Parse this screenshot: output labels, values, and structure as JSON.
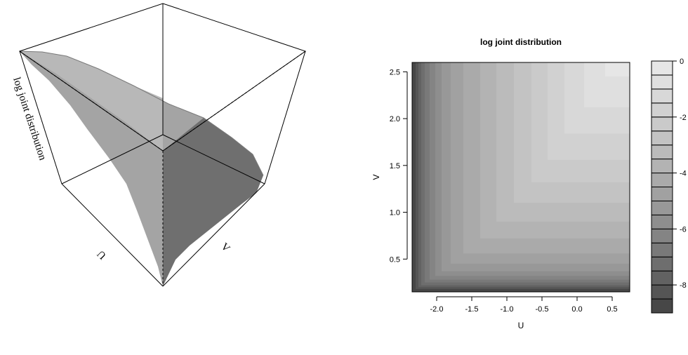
{
  "chart_data": [
    {
      "type": "surface",
      "xlabel": "U",
      "ylabel": "V",
      "zlabel": "log joint distribution",
      "colormap": "grayscale (dark = low, light = high)"
    },
    {
      "type": "filled-contour",
      "title": "log joint distribution",
      "xlabel": "U",
      "ylabel": "V",
      "xlim": [
        -2.35,
        0.75
      ],
      "ylim": [
        0.15,
        2.6
      ],
      "xticks": [
        "-2.0",
        "-1.5",
        "-1.0",
        "-0.5",
        "0.0",
        "0.5"
      ],
      "yticks": [
        "0.5",
        "1.0",
        "1.5",
        "2.0",
        "2.5"
      ],
      "colorbar": {
        "ticks": [
          "0",
          "-2",
          "-4",
          "-6",
          "-8"
        ],
        "range": [
          -9,
          0
        ],
        "levels": [
          {
            "from": -9.0,
            "to": -8.5,
            "color": "#474747"
          },
          {
            "from": -8.5,
            "to": -8.0,
            "color": "#555555"
          },
          {
            "from": -8.0,
            "to": -7.5,
            "color": "#626262"
          },
          {
            "from": -7.5,
            "to": -7.0,
            "color": "#6e6e6e"
          },
          {
            "from": -7.0,
            "to": -6.5,
            "color": "#797979"
          },
          {
            "from": -6.5,
            "to": -6.0,
            "color": "#848484"
          },
          {
            "from": -6.0,
            "to": -5.5,
            "color": "#8e8e8e"
          },
          {
            "from": -5.5,
            "to": -5.0,
            "color": "#989898"
          },
          {
            "from": -5.0,
            "to": -4.5,
            "color": "#a1a1a1"
          },
          {
            "from": -4.5,
            "to": -4.0,
            "color": "#aaaaaa"
          },
          {
            "from": -4.0,
            "to": -3.5,
            "color": "#b3b3b3"
          },
          {
            "from": -3.5,
            "to": -3.0,
            "color": "#bbbbbb"
          },
          {
            "from": -3.0,
            "to": -2.5,
            "color": "#c3c3c3"
          },
          {
            "from": -2.5,
            "to": -2.0,
            "color": "#cacaca"
          },
          {
            "from": -2.0,
            "to": -1.5,
            "color": "#d1d1d1"
          },
          {
            "from": -1.5,
            "to": -1.0,
            "color": "#d8d8d8"
          },
          {
            "from": -1.0,
            "to": -0.5,
            "color": "#dfdfdf"
          },
          {
            "from": -0.5,
            "to": 0.0,
            "color": "#e6e6e6"
          }
        ]
      },
      "bands": [
        {
          "level": -9.0,
          "color": "#474747",
          "u": -2.35,
          "v": 0.15
        },
        {
          "level": -8.5,
          "color": "#555555",
          "u": -2.3,
          "v": 0.18
        },
        {
          "level": -8.0,
          "color": "#626262",
          "u": -2.26,
          "v": 0.2
        },
        {
          "level": -7.5,
          "color": "#6e6e6e",
          "u": -2.22,
          "v": 0.22
        },
        {
          "level": -7.0,
          "color": "#797979",
          "u": -2.17,
          "v": 0.25
        },
        {
          "level": -6.5,
          "color": "#848484",
          "u": -2.1,
          "v": 0.28
        },
        {
          "level": -6.0,
          "color": "#8e8e8e",
          "u": -2.02,
          "v": 0.32
        },
        {
          "level": -5.5,
          "color": "#989898",
          "u": -1.93,
          "v": 0.37
        },
        {
          "level": -5.0,
          "color": "#a1a1a1",
          "u": -1.8,
          "v": 0.45
        },
        {
          "level": -4.5,
          "color": "#aaaaaa",
          "u": -1.62,
          "v": 0.56
        },
        {
          "level": -4.0,
          "color": "#b3b3b3",
          "u": -1.38,
          "v": 0.72
        },
        {
          "level": -3.5,
          "color": "#bbbbbb",
          "u": -1.15,
          "v": 0.9
        },
        {
          "level": -3.0,
          "color": "#c3c3c3",
          "u": -0.9,
          "v": 1.1
        },
        {
          "level": -2.5,
          "color": "#cacaca",
          "u": -0.65,
          "v": 1.32
        },
        {
          "level": -2.0,
          "color": "#d1d1d1",
          "u": -0.42,
          "v": 1.56
        },
        {
          "level": -1.5,
          "color": "#d8d8d8",
          "u": -0.18,
          "v": 1.84
        },
        {
          "level": -1.0,
          "color": "#dfdfdf",
          "u": 0.1,
          "v": 2.12
        },
        {
          "level": -0.5,
          "color": "#e6e6e6",
          "u": 0.4,
          "v": 2.45
        }
      ]
    }
  ]
}
